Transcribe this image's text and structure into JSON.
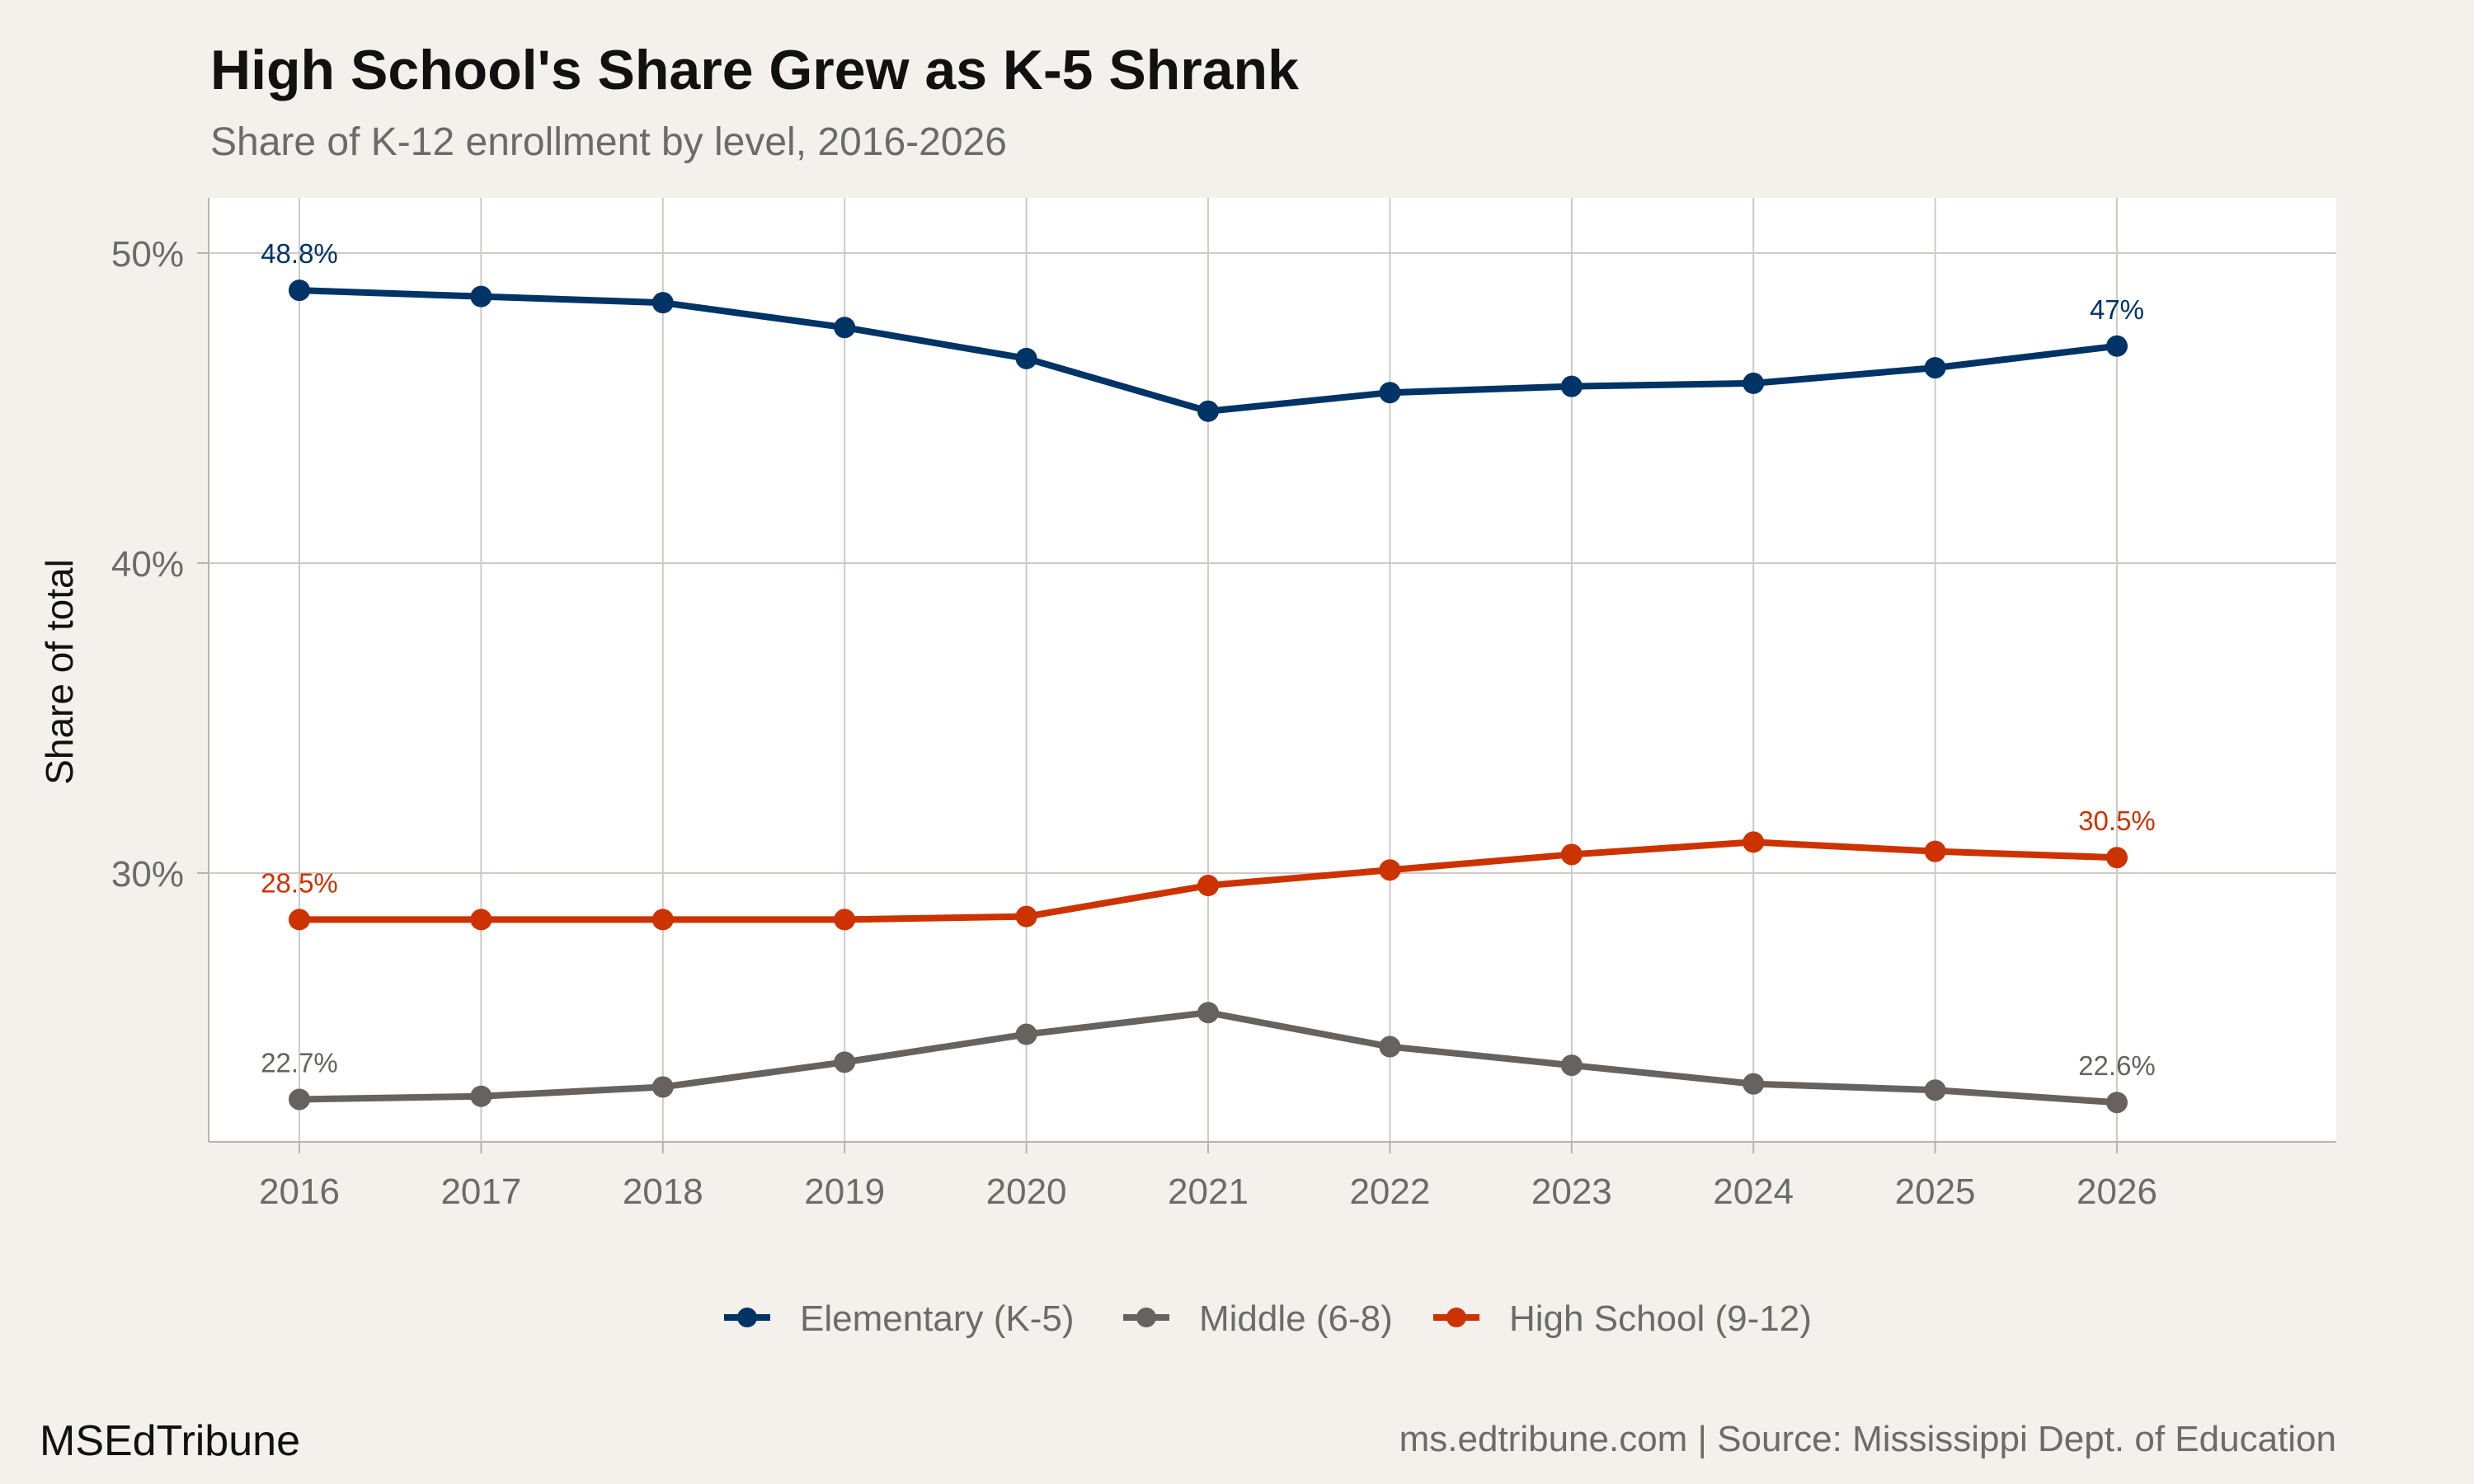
{
  "chart_data": {
    "type": "line",
    "title": "High School's Share Grew as K-5 Shrank",
    "subtitle": "Share of K-12 enrollment by level, 2016-2026",
    "ylabel": "Share of total",
    "xlabel": "",
    "x": [
      2016,
      2017,
      2018,
      2019,
      2020,
      2021,
      2022,
      2023,
      2024,
      2025,
      2026
    ],
    "y_ticks": [
      30,
      40,
      50
    ],
    "y_tick_labels": [
      "30%",
      "40%",
      "50%"
    ],
    "ylim": [
      21.5,
      52
    ],
    "grid": true,
    "legend_position": "bottom",
    "series": [
      {
        "name": "Elementary (K-5)",
        "color": "#003366",
        "values": [
          48.8,
          48.6,
          48.4,
          47.6,
          46.6,
          44.9,
          45.5,
          45.7,
          45.8,
          46.3,
          47.0
        ],
        "end_labels": {
          "first": "48.8%",
          "last": "47%"
        }
      },
      {
        "name": "Middle (6-8)",
        "color": "#67625d",
        "values": [
          22.7,
          22.8,
          23.1,
          23.9,
          24.8,
          25.5,
          24.4,
          23.8,
          23.2,
          23.0,
          22.6
        ],
        "end_labels": {
          "first": "22.7%",
          "last": "22.6%"
        }
      },
      {
        "name": "High School (9-12)",
        "color": "#cc3300",
        "values": [
          28.5,
          28.5,
          28.5,
          28.5,
          28.6,
          29.6,
          30.1,
          30.6,
          31.0,
          30.7,
          30.5
        ],
        "end_labels": {
          "first": "28.5%",
          "last": "30.5%"
        }
      }
    ]
  },
  "footer": {
    "brand": "MSEdTribune",
    "source": "ms.edtribune.com | Source: Mississippi Dept. of Education"
  }
}
